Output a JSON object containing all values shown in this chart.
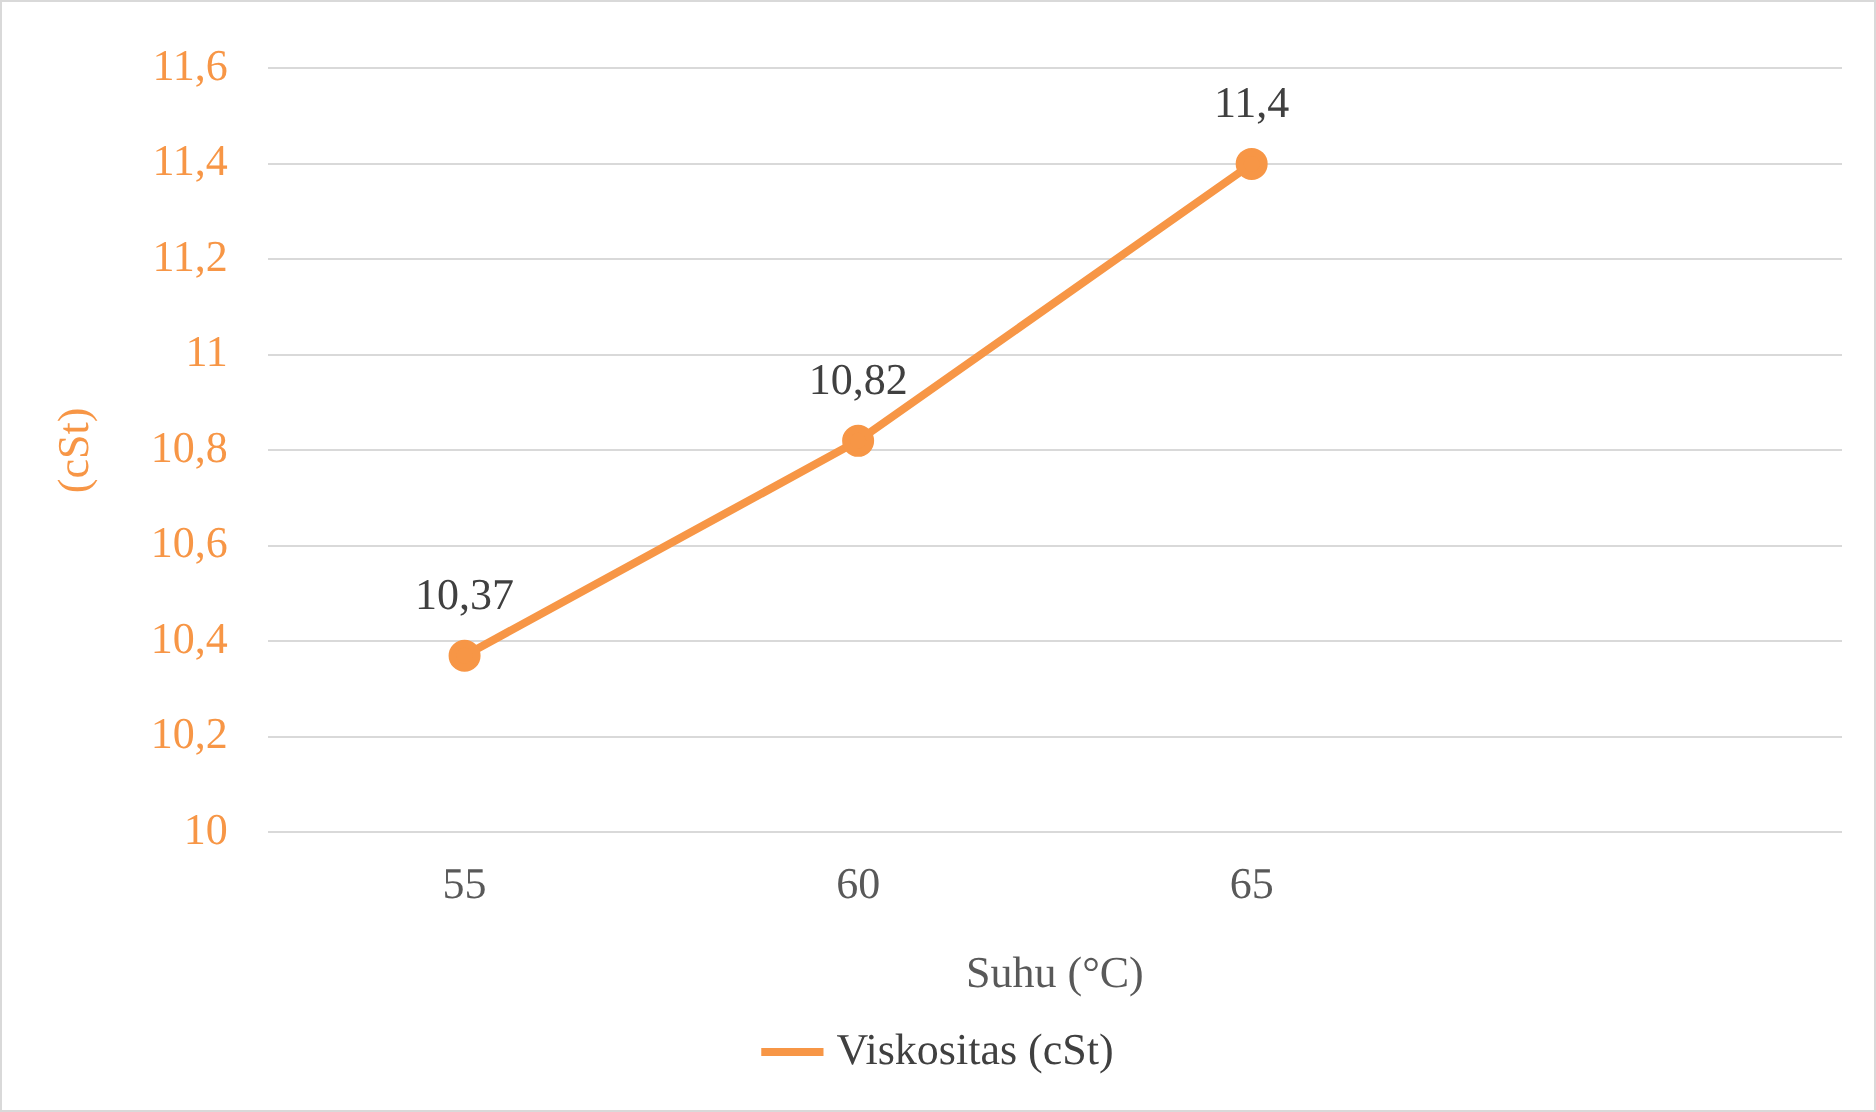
{
  "chart_data": {
    "type": "line",
    "xlabel": "Suhu (°C)",
    "ylabel": "(cSt)",
    "categories": [
      "55",
      "60",
      "65",
      null
    ],
    "series": [
      {
        "name": "Viskositas (cSt)",
        "color": "#f79646",
        "values": [
          10.37,
          10.82,
          11.4,
          null
        ],
        "value_labels": [
          "10,37",
          "10,82",
          "11,4",
          null
        ]
      }
    ],
    "ylim": [
      10,
      11.6
    ],
    "yticks": [
      10,
      {
        "value": 10.2,
        "label": "10,2"
      },
      {
        "value": 10.4,
        "label": "10,4"
      },
      {
        "value": 10.6,
        "label": "10,6"
      },
      {
        "value": 10.8,
        "label": "10,8"
      },
      11,
      {
        "value": 11.2,
        "label": "11,2"
      },
      {
        "value": 11.4,
        "label": "11,4"
      },
      {
        "value": 11.6,
        "label": "11,6"
      }
    ],
    "grid": "y",
    "legend": "bottom",
    "marker": "circle",
    "line_style": "solid"
  }
}
